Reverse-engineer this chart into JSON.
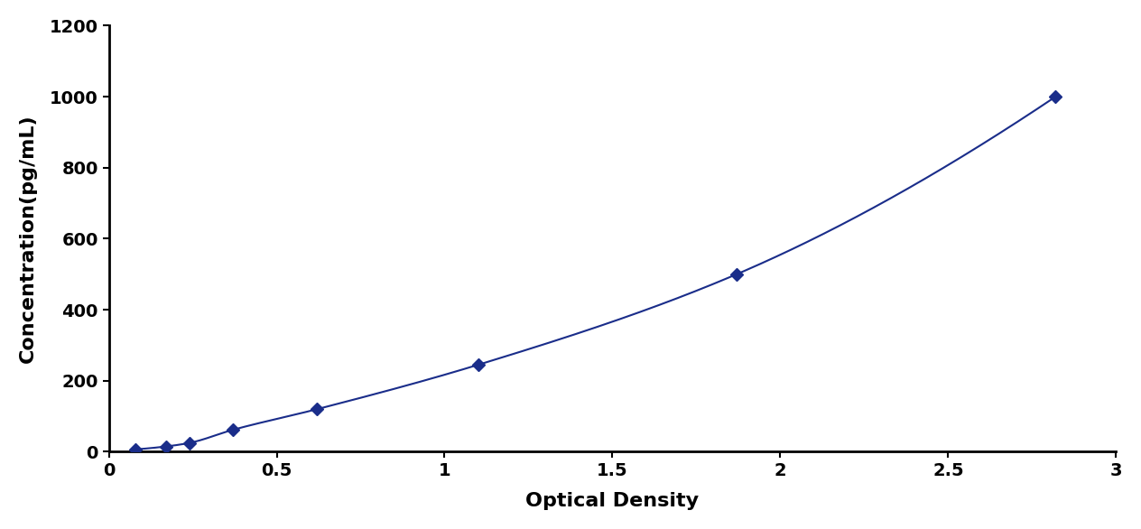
{
  "x_data": [
    0.08,
    0.17,
    0.24,
    0.37,
    0.62,
    1.1,
    1.87,
    2.82
  ],
  "y_data": [
    7,
    15,
    25,
    62,
    120,
    245,
    500,
    1000
  ],
  "line_color": "#1a2d8a",
  "marker_color": "#1a2d8a",
  "marker_style": "D",
  "marker_size": 7,
  "line_width": 1.5,
  "xlabel": "Optical Density",
  "ylabel": "Concentration(pg/mL)",
  "xlim": [
    0,
    3.0
  ],
  "ylim": [
    0,
    1200
  ],
  "xticks": [
    0.0,
    0.5,
    1.0,
    1.5,
    2.0,
    2.5,
    3.0
  ],
  "yticks": [
    0,
    200,
    400,
    600,
    800,
    1000,
    1200
  ],
  "xlabel_fontsize": 16,
  "ylabel_fontsize": 16,
  "tick_fontsize": 14,
  "xlabel_fontweight": "bold",
  "ylabel_fontweight": "bold",
  "tick_fontweight": "bold",
  "background_color": "#ffffff",
  "figure_width": 12.64,
  "figure_height": 5.86,
  "dpi": 100
}
